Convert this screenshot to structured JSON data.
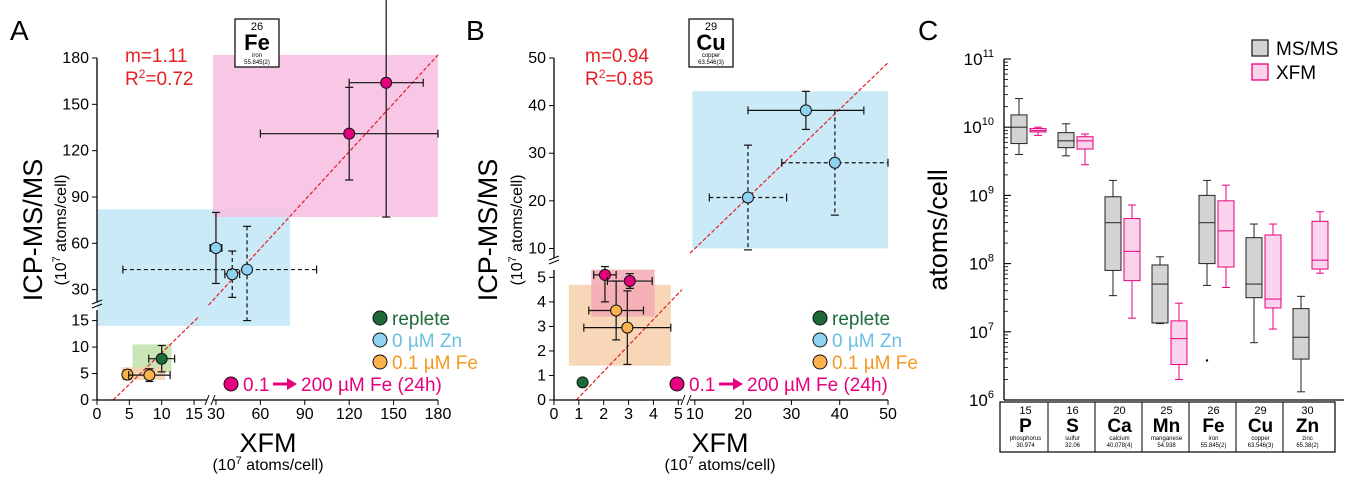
{
  "chart_data": [
    {
      "panel": "A",
      "type": "scatter",
      "element": {
        "number": "26",
        "symbol": "Fe",
        "name": "iron",
        "mass": "55.845(2)"
      },
      "annotation": {
        "slope": "m=1.11",
        "r2_prefix": "R",
        "r2_exp": "2",
        "r2_value": "=0.72"
      },
      "xlabel": "XFM",
      "xunit": {
        "pre": "(10",
        "exp": "7",
        "post": " atoms/cell)"
      },
      "ylabel": "ICP-MS/MS",
      "yunit": {
        "pre": "(10",
        "exp": "7",
        "post": " atoms/cell)"
      },
      "x_ticks_low": [
        "0",
        "5",
        "10",
        "15"
      ],
      "x_ticks_high": [
        "30",
        "60",
        "90",
        "120",
        "150",
        "180"
      ],
      "y_ticks_low": [
        "0",
        "5",
        "10",
        "15"
      ],
      "y_ticks_high": [
        "30",
        "60",
        "90",
        "120",
        "150",
        "180"
      ],
      "xlim_low": [
        0,
        17
      ],
      "xlim_high": [
        28,
        180
      ],
      "ylim_low": [
        0,
        17
      ],
      "ylim_high": [
        22,
        180
      ],
      "boxes": [
        {
          "group": "replete",
          "x": [
            5.5,
            11.5
          ],
          "y": [
            5.2,
            10.5
          ],
          "color": "#bfe0a8"
        },
        {
          "group": "0.1 µM Fe",
          "x": [
            3.8,
            10.5
          ],
          "y": [
            3.8,
            6.2
          ],
          "color": "#f7d0ac"
        },
        {
          "group": "0 µM Zn",
          "x": [
            0,
            80
          ],
          "y": [
            14,
            82
          ],
          "color": "#bfe6f4"
        },
        {
          "group": "0.1 → 200 µM Fe (24h)",
          "x": [
            28,
            180
          ],
          "y": [
            77,
            182
          ],
          "color": "#f6bde0"
        }
      ],
      "points": [
        {
          "group": "replete",
          "x": 10,
          "y": 7.8,
          "xerr": 2,
          "yerr": 2.5,
          "dashed": false
        },
        {
          "group": "0.1 µM Fe",
          "x": 4.7,
          "y": 4.8,
          "xerr": 0.6,
          "yerr": 0.9,
          "dashed": false
        },
        {
          "group": "0.1 µM Fe",
          "x": 8.1,
          "y": 4.7,
          "xerr": 3.2,
          "yerr": 1.2,
          "dashed": false
        },
        {
          "group": "0 µM Zn",
          "x": 30,
          "y": 57,
          "xerr": 4,
          "yerr": 23,
          "dashed": false
        },
        {
          "group": "0 µM Zn",
          "x": 41,
          "y": 40,
          "xerr": 5,
          "yerr": 15,
          "dashed": true
        },
        {
          "group": "0 µM Zn",
          "x": 51,
          "y": 43,
          "xerr": 47,
          "yerr": 28,
          "dashed": true
        },
        {
          "group": "0.1 → 200 µM Fe (24h)",
          "x": 120,
          "y": 131,
          "xerr": 60,
          "yerr": 30,
          "dashed": false
        },
        {
          "group": "0.1 → 200 µM Fe (24h)",
          "x": 145,
          "y": 164,
          "xerr": 25,
          "yerr": 87,
          "dashed": false
        }
      ]
    },
    {
      "panel": "B",
      "type": "scatter",
      "element": {
        "number": "29",
        "symbol": "Cu",
        "name": "copper",
        "mass": "63.546(3)"
      },
      "annotation": {
        "slope": "m=0.94",
        "r2_prefix": "R",
        "r2_exp": "2",
        "r2_value": "=0.85"
      },
      "xlabel": "XFM",
      "xunit": {
        "pre": "(10",
        "exp": "7",
        "post": " atoms/cell)"
      },
      "ylabel": "ICP-MS/MS",
      "yunit": {
        "pre": "(10",
        "exp": "7",
        "post": " atoms/cell)"
      },
      "x_ticks_low": [
        "0",
        "1",
        "2",
        "3",
        "4",
        "5"
      ],
      "x_ticks_high": [
        "10",
        "20",
        "30",
        "40",
        "50"
      ],
      "y_ticks_low": [
        "0",
        "1",
        "2",
        "3",
        "4",
        "5"
      ],
      "y_ticks_high": [
        "10",
        "20",
        "30",
        "40",
        "50"
      ],
      "xlim_low": [
        0,
        5.15
      ],
      "xlim_high": [
        9,
        50
      ],
      "ylim_low": [
        0,
        5.3
      ],
      "ylim_high": [
        8,
        50
      ],
      "boxes": [
        {
          "group": "0.1 µM Fe",
          "x": [
            0.6,
            4.7
          ],
          "y": [
            1.4,
            4.7
          ],
          "color": "#f7d0ac"
        },
        {
          "group": "0.1 → 200 µM Fe (24h)",
          "x": [
            1.5,
            4.05
          ],
          "y": [
            3.4,
            5.55
          ],
          "color": "#f4a9b4"
        },
        {
          "group": "0 µM Zn",
          "x": [
            9.5,
            50
          ],
          "y": [
            10,
            43
          ],
          "color": "#bfe6f4"
        }
      ],
      "points": [
        {
          "group": "replete",
          "x": 1.15,
          "y": 0.72,
          "xerr": 0.15,
          "yerr": 0.1,
          "dashed": false
        },
        {
          "group": "0.1 µM Fe",
          "x": 2.5,
          "y": 3.65,
          "xerr": 1.1,
          "yerr": 1.2,
          "dashed": false
        },
        {
          "group": "0.1 µM Fe",
          "x": 2.95,
          "y": 2.95,
          "xerr": 1.75,
          "yerr": 1.5,
          "dashed": false
        },
        {
          "group": "0.1 → 200 µM Fe (24h)",
          "x": 2.05,
          "y": 5.1,
          "xerr": 0.45,
          "yerr": 1.1,
          "dashed": false
        },
        {
          "group": "0.1 → 200 µM Fe (24h)",
          "x": 3.05,
          "y": 4.85,
          "xerr": 0.9,
          "yerr": 0.3,
          "dashed": false
        },
        {
          "group": "0 µM Zn",
          "x": 33,
          "y": 39,
          "xerr": 12,
          "yerr": 4,
          "dashed": false
        },
        {
          "group": "0 µM Zn",
          "x": 21,
          "y": 20.7,
          "xerr": 8,
          "yerr": 11,
          "dashed": true
        },
        {
          "group": "0 µM Zn",
          "x": 39,
          "y": 28,
          "xerr": 11,
          "yerr": 11,
          "dashed": true
        }
      ]
    },
    {
      "panel": "C",
      "type": "box",
      "ylabel": "atoms/cell",
      "y_scale": "log",
      "ylim": [
        6,
        11
      ],
      "y_ticks": [
        {
          "base": "10",
          "exp": "6",
          "v": 6
        },
        {
          "base": "10",
          "exp": "7",
          "v": 7
        },
        {
          "base": "10",
          "exp": "8",
          "v": 8
        },
        {
          "base": "10",
          "exp": "9",
          "v": 9
        },
        {
          "base": "10",
          "exp": "10",
          "v": 10
        },
        {
          "base": "10",
          "exp": "11",
          "v": 11
        }
      ],
      "legend": [
        {
          "name": "MS/MS",
          "color": "#d3d3d3",
          "stroke": "#222222"
        },
        {
          "name": "XFM",
          "color": "#fbd3ec",
          "stroke": "#e6007e"
        }
      ],
      "legend_position": "top-right",
      "elements": [
        {
          "number": "15",
          "symbol": "P",
          "name": "phosphorus",
          "mass": "30.974"
        },
        {
          "number": "16",
          "symbol": "S",
          "name": "sulfur",
          "mass": "32.06"
        },
        {
          "number": "20",
          "symbol": "Ca",
          "name": "calcium",
          "mass": "40.078(4)"
        },
        {
          "number": "25",
          "symbol": "Mn",
          "name": "manganese",
          "mass": "54.938"
        },
        {
          "number": "26",
          "symbol": "Fe",
          "name": "iron",
          "mass": "55.845(2)"
        },
        {
          "number": "29",
          "symbol": "Cu",
          "name": "copper",
          "mass": "63.546(3)"
        },
        {
          "number": "30",
          "symbol": "Zn",
          "name": "zinc",
          "mass": "65.38(2)"
        }
      ],
      "series": [
        {
          "name": "MS/MS",
          "boxes": [
            {
              "min": 9.6,
              "q1": 9.76,
              "med": 10.0,
              "q3": 10.18,
              "max": 10.42
            },
            {
              "min": 9.58,
              "q1": 9.7,
              "med": 9.8,
              "q3": 9.92,
              "max": 10.05
            },
            {
              "min": 7.53,
              "q1": 7.9,
              "med": 8.6,
              "q3": 8.98,
              "max": 9.22
            },
            {
              "min": 7.12,
              "q1": 7.13,
              "med": 7.7,
              "q3": 7.98,
              "max": 8.1
            },
            {
              "min": 7.68,
              "q1": 8.0,
              "med": 8.6,
              "q3": 9.0,
              "max": 9.22
            },
            {
              "min": 6.84,
              "q1": 7.5,
              "med": 7.7,
              "q3": 8.38,
              "max": 8.58
            },
            {
              "min": 6.12,
              "q1": 6.6,
              "med": 6.92,
              "q3": 7.34,
              "max": 7.52
            }
          ],
          "outliers": [
            {
              "group": 4,
              "v": 6.58
            }
          ]
        },
        {
          "name": "XFM",
          "boxes": [
            {
              "min": 9.88,
              "q1": 9.93,
              "med": 9.95,
              "q3": 9.98,
              "max": 10.0
            },
            {
              "min": 9.45,
              "q1": 9.68,
              "med": 9.8,
              "q3": 9.86,
              "max": 9.9
            },
            {
              "min": 7.2,
              "q1": 7.75,
              "med": 8.18,
              "q3": 8.66,
              "max": 8.86
            },
            {
              "min": 6.3,
              "q1": 6.52,
              "med": 6.9,
              "q3": 7.16,
              "max": 7.42
            },
            {
              "min": 7.65,
              "q1": 7.95,
              "med": 8.48,
              "q3": 8.92,
              "max": 9.15
            },
            {
              "min": 7.04,
              "q1": 7.35,
              "med": 7.48,
              "q3": 8.42,
              "max": 8.58
            },
            {
              "min": 7.86,
              "q1": 7.92,
              "med": 8.05,
              "q3": 8.62,
              "max": 8.76
            }
          ],
          "outliers": []
        }
      ]
    }
  ],
  "panel_labels": [
    "A",
    "B",
    "C"
  ],
  "legend": [
    {
      "name": "replete",
      "color": "#1d6b3b",
      "text_color": "#1d6b3b"
    },
    {
      "name": "0 µM Zn",
      "color": "#8fd3f2",
      "text_color": "#6bbfe6"
    },
    {
      "name": "0.1 µM Fe",
      "color": "#f9b34a",
      "text_color": "#f29a23"
    },
    {
      "name_a": "0.1",
      "name_b": "200 µM Fe (24h)",
      "color": "#e6007e",
      "text_color": "#e6007e"
    }
  ],
  "colors": {
    "fit_line": "#e61e25",
    "annotation": "#e61e25"
  }
}
